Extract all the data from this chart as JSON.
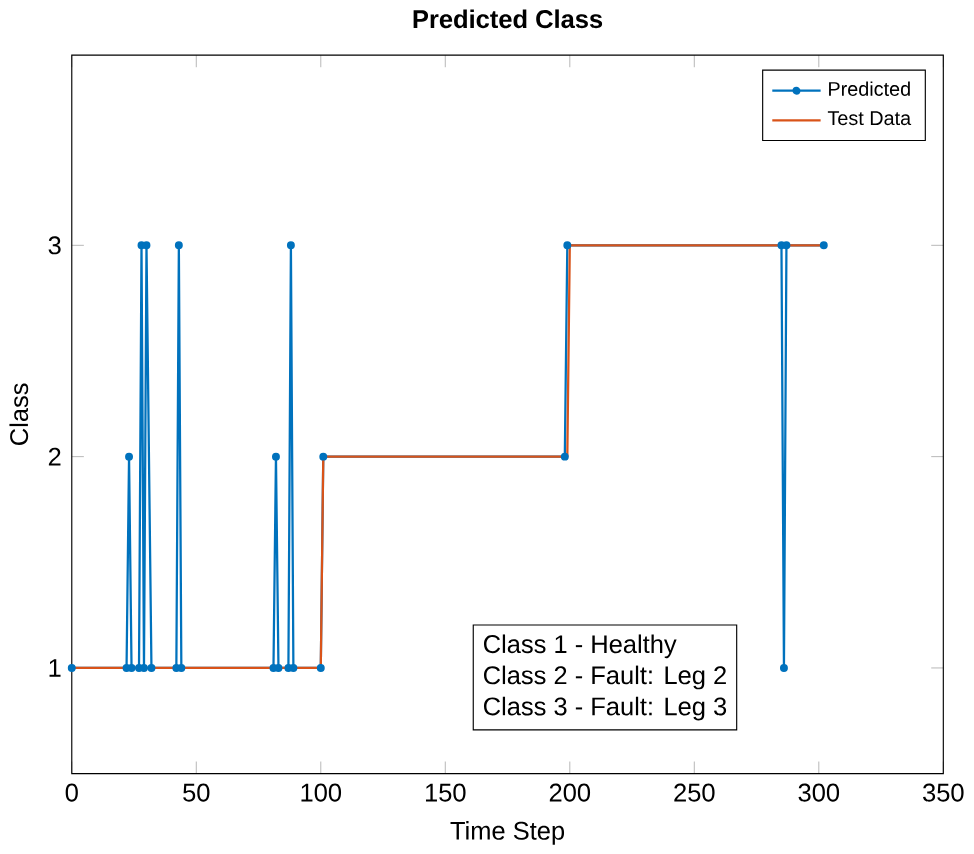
{
  "chart_data": {
    "type": "line",
    "title": "Predicted Class",
    "xlabel": "Time Step",
    "ylabel": "Class",
    "xlim": [
      0,
      350
    ],
    "xticks": [
      0,
      50,
      100,
      150,
      200,
      250,
      300,
      350
    ],
    "ylim": [
      0.5,
      3.9
    ],
    "yticks": [
      1,
      2,
      3
    ],
    "legend": "top right",
    "grid": false,
    "series": [
      {
        "name": "Predicted",
        "color": "#0072bd",
        "marker": "circle",
        "x": [
          0,
          22,
          23,
          24,
          27,
          28,
          29,
          30,
          32,
          42,
          43,
          44,
          81,
          82,
          83,
          87,
          88,
          89,
          100,
          101,
          198,
          199,
          285,
          286,
          287,
          302
        ],
        "values": [
          1,
          1,
          2,
          1,
          1,
          3,
          1,
          3,
          1,
          1,
          3,
          1,
          1,
          2,
          1,
          1,
          3,
          1,
          1,
          2,
          2,
          3,
          3,
          1,
          3,
          3
        ]
      },
      {
        "name": "Test Data",
        "color": "#d95319",
        "marker": "none",
        "x": [
          0,
          100,
          101,
          199,
          200,
          302
        ],
        "values": [
          1,
          1,
          2,
          2,
          3,
          3
        ]
      }
    ],
    "annotations": [
      "Class 1 - Healthy",
      "Class 2 - Fault: Leg 2",
      "Class 3 - Fault: Leg 3"
    ]
  }
}
